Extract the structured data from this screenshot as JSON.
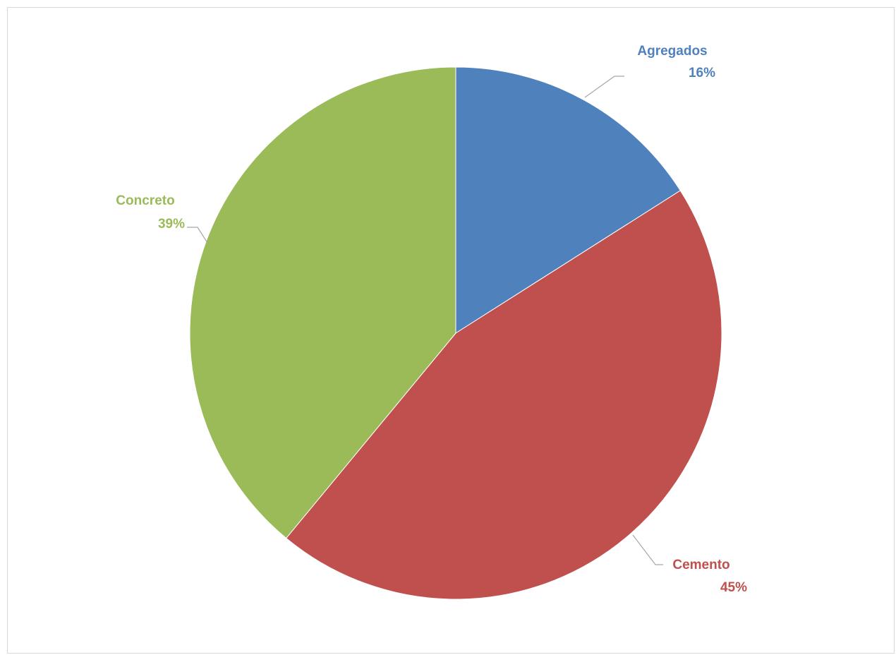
{
  "chart_data": {
    "type": "pie",
    "title": "",
    "start_angle_deg": 0,
    "direction": "clockwise",
    "slices": [
      {
        "label": "Agregados",
        "value": 16,
        "value_label": "16%",
        "color": "#4f81bd"
      },
      {
        "label": "Cemento",
        "value": 45,
        "value_label": "45%",
        "color": "#c0504d"
      },
      {
        "label": "Concreto",
        "value": 39,
        "value_label": "39%",
        "color": "#9bbb59"
      }
    ],
    "legend": "none",
    "leader_line_color": "#a6a6a6"
  }
}
